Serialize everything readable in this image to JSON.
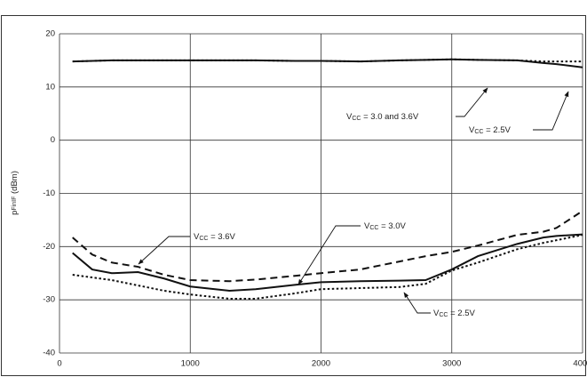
{
  "chart_data": {
    "type": "line",
    "y_label": {
      "main": "p",
      "sub": "FinIF",
      "rest": " (dBm)"
    },
    "x": [
      100,
      250,
      400,
      600,
      800,
      1000,
      1300,
      1500,
      1800,
      2000,
      2300,
      2600,
      2800,
      3000,
      3200,
      3500,
      3700,
      3800,
      4000
    ],
    "series": [
      {
        "color": "#111",
        "style": "solid",
        "values": [
          14.8,
          14.9,
          15,
          15,
          15,
          15,
          15,
          15,
          14.9,
          14.9,
          14.8,
          15,
          15.1,
          15.2,
          15.1,
          15,
          14.5,
          14.3,
          13.7
        ]
      },
      {
        "color": "#111",
        "style": "dotted",
        "values": [
          14.8,
          14.9,
          15,
          15,
          15,
          15,
          15,
          15,
          14.9,
          14.9,
          14.8,
          15,
          15.1,
          15.2,
          15.1,
          15,
          14.8,
          14.8,
          14.8
        ]
      },
      {
        "color": "#111",
        "style": "dashed",
        "values": [
          -18.3,
          -21.5,
          -23,
          -23.8,
          -25.3,
          -26.3,
          -26.5,
          -26.2,
          -25.5,
          -25,
          -24.3,
          -22.8,
          -21.8,
          -21,
          -19.8,
          -17.8,
          -17.2,
          -16.5,
          -13.3
        ]
      },
      {
        "color": "#111",
        "style": "solid",
        "values": [
          -21.2,
          -24.3,
          -25,
          -24.8,
          -26,
          -27.5,
          -28.3,
          -28,
          -27.2,
          -26.7,
          -26.5,
          -26.4,
          -26.3,
          -24.3,
          -21.8,
          -19.5,
          -18.3,
          -18,
          -17.7
        ]
      },
      {
        "color": "#111",
        "style": "dotted",
        "values": [
          -25.3,
          -25.8,
          -26.3,
          -27.3,
          -28.3,
          -29,
          -29.8,
          -29.8,
          -28.8,
          -28,
          -27.8,
          -27.6,
          -27,
          -24.5,
          -23,
          -20.5,
          -19.3,
          -18.8,
          -17.8
        ]
      }
    ],
    "annotations": [
      {
        "main": "V",
        "sub": "CC",
        "rest": " = 3.0 and 3.6V"
      },
      {
        "main": "V",
        "sub": "CC",
        "rest": " = 2.5V"
      },
      {
        "main": "V",
        "sub": "CC",
        "rest": " = 3.6V"
      },
      {
        "main": "V",
        "sub": "CC",
        "rest": " = 3.0V"
      },
      {
        "main": "V",
        "sub": "CC",
        "rest": " = 2.5V"
      }
    ],
    "xlim": [
      0,
      4000
    ],
    "xticks": [
      0,
      1000,
      2000,
      3000,
      4000
    ],
    "ylim": [
      -40,
      20
    ],
    "yticks": [
      -40,
      -30,
      -20,
      -10,
      0,
      10,
      20
    ],
    "grid": true
  }
}
